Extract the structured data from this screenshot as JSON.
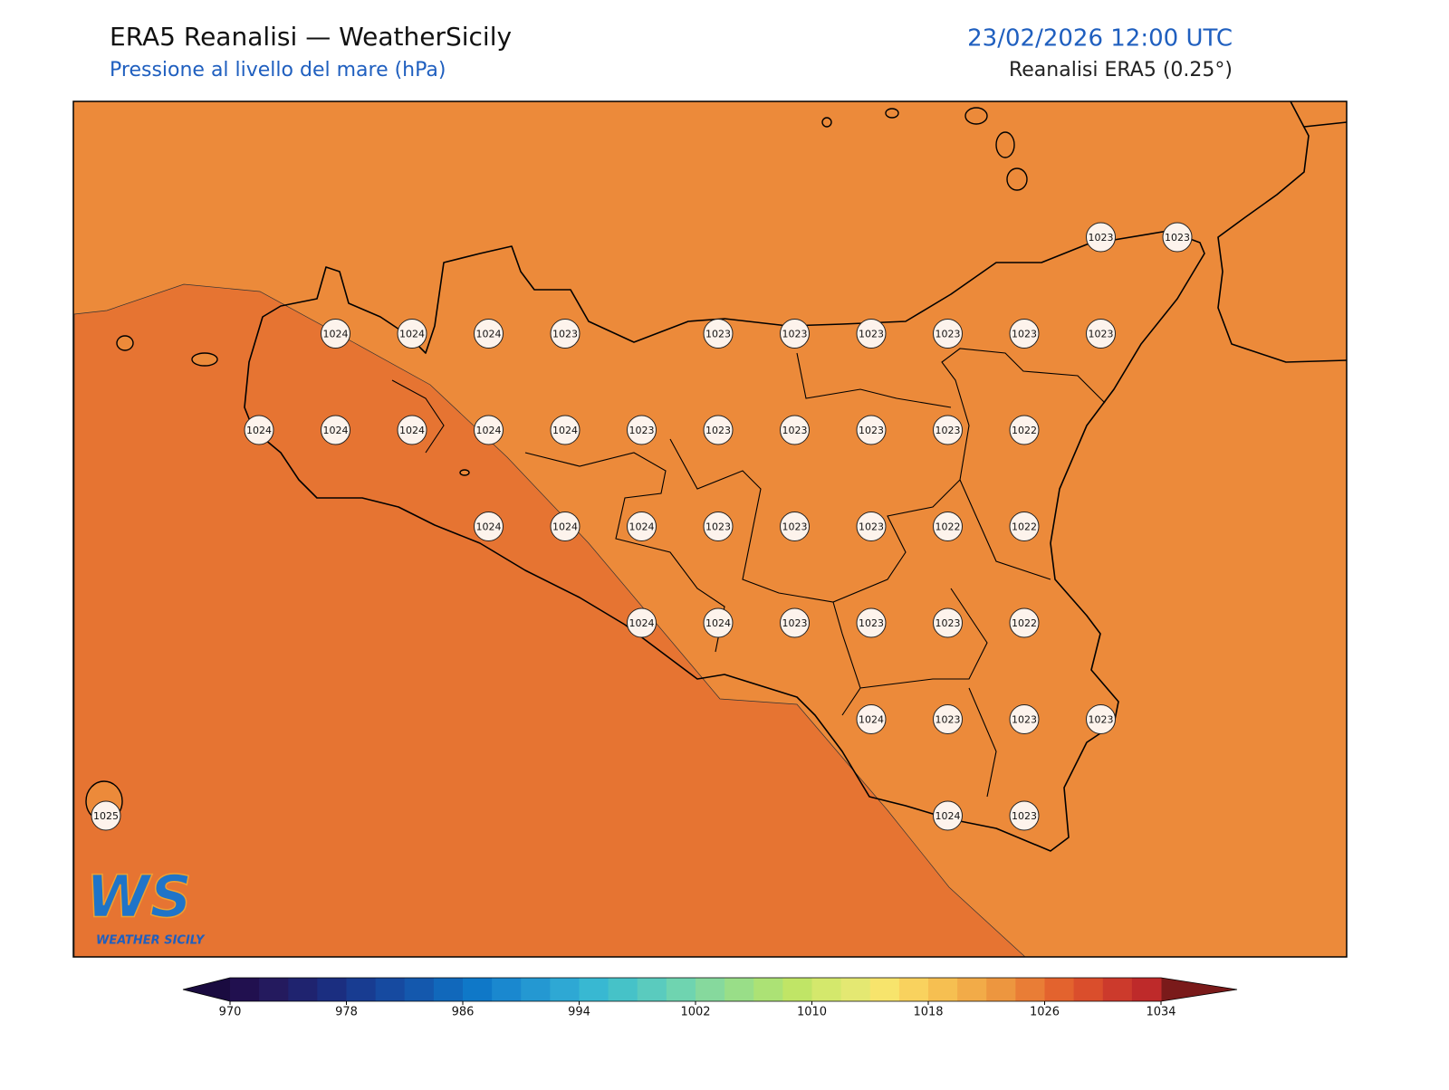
{
  "header": {
    "title": "ERA5 Reanalisi — WeatherSicily",
    "subtitle": "Pressione al livello del mare (hPa)",
    "datetime": "23/02/2026 12:00 UTC",
    "source": "Reanalisi ERA5 (0.25°)"
  },
  "logo": {
    "mark": "WS",
    "text": "WEATHER SICILY"
  },
  "points": {
    "rows": [
      [
        null,
        null,
        null,
        null,
        null,
        null,
        null,
        null,
        null,
        null,
        null,
        null,
        null,
        1023,
        1023
      ],
      [
        null,
        null,
        null,
        1024,
        1024,
        1024,
        1023,
        null,
        1023,
        1023,
        1023,
        1023,
        1023,
        1023,
        null
      ],
      [
        null,
        null,
        1024,
        1024,
        1024,
        1024,
        1024,
        1023,
        1023,
        1023,
        1023,
        1023,
        1022,
        null,
        null
      ],
      [
        null,
        null,
        null,
        null,
        null,
        1024,
        1024,
        1024,
        1023,
        1023,
        1023,
        1022,
        1022,
        null,
        null
      ],
      [
        null,
        null,
        null,
        null,
        null,
        null,
        null,
        1024,
        1024,
        1023,
        1023,
        1023,
        1022,
        null,
        null
      ],
      [
        null,
        null,
        null,
        null,
        null,
        null,
        null,
        null,
        null,
        null,
        1024,
        1023,
        1023,
        1023,
        null
      ],
      [
        1025,
        null,
        null,
        null,
        null,
        null,
        null,
        null,
        null,
        null,
        null,
        1024,
        1023,
        null,
        null
      ]
    ]
  },
  "colorbar": {
    "range": [
      970,
      1034
    ],
    "ticks": [
      970,
      978,
      986,
      994,
      1002,
      1010,
      1018,
      1026,
      1034
    ],
    "colors": [
      "#21104f",
      "#241a5e",
      "#1f236f",
      "#1b2e80",
      "#183c91",
      "#164aa0",
      "#1458ad",
      "#1168bb",
      "#0f78c8",
      "#1a88cf",
      "#2498d2",
      "#2ea8d4",
      "#38b8d2",
      "#46c2c8",
      "#5acbbe",
      "#6fd4b0",
      "#86d99d",
      "#99de88",
      "#ace275",
      "#c0e566",
      "#d4e86c",
      "#e4e872",
      "#f7e46c",
      "#f9d25e",
      "#f6bf51",
      "#f2ab48",
      "#ed963f",
      "#e97d36",
      "#e3632e",
      "#da4e2c",
      "#cc3a2c",
      "#be2a2a"
    ],
    "under": "#1a0b40",
    "over": "#7a1a1a"
  }
}
